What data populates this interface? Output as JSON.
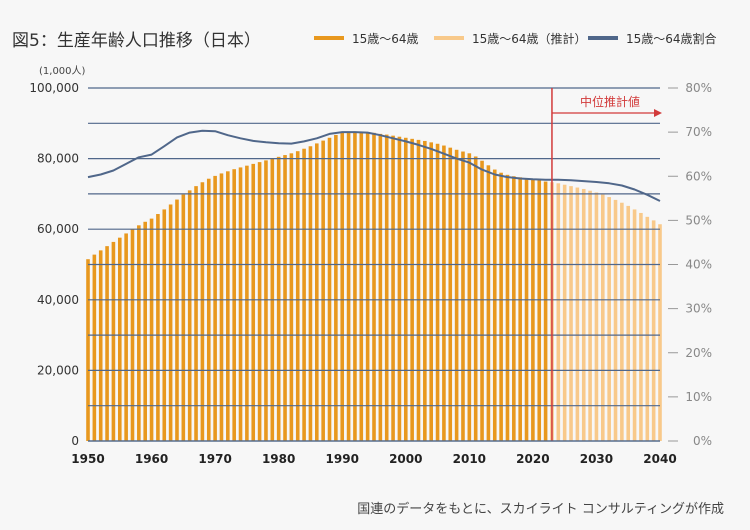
{
  "title": "図5：生産年齢人口推移（日本）",
  "unit_label": "(1,000人)",
  "source": "国連のデータをもとに、スカイライト コンサルティングが作成",
  "legend": [
    {
      "label": "15歳〜64歳",
      "color": "#e8981e"
    },
    {
      "label": "15歳〜64歳（推計）",
      "color": "#f8c98a"
    },
    {
      "label": "15歳〜64歳割合",
      "color": "#50678a"
    }
  ],
  "annotation": "中位推計値",
  "colors": {
    "actual": "#e8981e",
    "projection": "#f8c98a",
    "ratio_line": "#50678a",
    "annotation": "#d23a3a",
    "grid": "#50678a"
  },
  "chart_data": {
    "type": "bar",
    "title": "図5：生産年齢人口推移（日本）",
    "x": {
      "min": 1950,
      "max": 2040,
      "ticks": [
        1950,
        1960,
        1970,
        1980,
        1990,
        2000,
        2010,
        2020,
        2030,
        2040
      ],
      "tick_labels": [
        "1950",
        "1960",
        "1970",
        "1980",
        "1990",
        "2000",
        "2010",
        "2020",
        "2030",
        "2040"
      ]
    },
    "y_left": {
      "label": "(1,000人)",
      "range": [
        0,
        100000
      ],
      "ticks": [
        0,
        20000,
        40000,
        60000,
        80000,
        100000
      ],
      "tick_labels": [
        "0",
        "20,000",
        "40,000",
        "60,000",
        "80,000",
        "100,000"
      ]
    },
    "y_right": {
      "range": [
        0,
        80
      ],
      "ticks": [
        0,
        10,
        20,
        30,
        40,
        50,
        60,
        70,
        80
      ],
      "tick_labels": [
        "0%",
        "10%",
        "20%",
        "30%",
        "40%",
        "50%",
        "60%",
        "70%",
        "80%"
      ]
    },
    "projection_start": 2023,
    "series": [
      {
        "name": "15歳〜64歳",
        "type": "bar",
        "axis": "left",
        "x": [
          1950,
          1951,
          1952,
          1953,
          1954,
          1955,
          1956,
          1957,
          1958,
          1959,
          1960,
          1961,
          1962,
          1963,
          1964,
          1965,
          1966,
          1967,
          1968,
          1969,
          1970,
          1971,
          1972,
          1973,
          1974,
          1975,
          1976,
          1977,
          1978,
          1979,
          1980,
          1981,
          1982,
          1983,
          1984,
          1985,
          1986,
          1987,
          1988,
          1989,
          1990,
          1991,
          1992,
          1993,
          1994,
          1995,
          1996,
          1997,
          1998,
          1999,
          2000,
          2001,
          2002,
          2003,
          2004,
          2005,
          2006,
          2007,
          2008,
          2009,
          2010,
          2011,
          2012,
          2013,
          2014,
          2015,
          2016,
          2017,
          2018,
          2019,
          2020,
          2021,
          2022
        ],
        "values": [
          51500,
          52800,
          54000,
          55200,
          56400,
          57600,
          58800,
          60000,
          61100,
          62100,
          63000,
          64300,
          65600,
          67000,
          68400,
          69800,
          71000,
          72200,
          73300,
          74300,
          75100,
          75800,
          76400,
          77000,
          77500,
          78000,
          78500,
          79000,
          79500,
          80000,
          80500,
          81000,
          81500,
          82100,
          82800,
          83500,
          84300,
          85100,
          85900,
          86700,
          87300,
          87600,
          87700,
          87600,
          87500,
          87300,
          87000,
          86800,
          86500,
          86200,
          85900,
          85600,
          85300,
          85000,
          84600,
          84200,
          83700,
          83100,
          82500,
          82000,
          81500,
          80600,
          79400,
          78100,
          76900,
          76000,
          75400,
          75000,
          74700,
          74400,
          74100,
          73800,
          73500
        ]
      },
      {
        "name": "15歳〜64歳（推計）",
        "type": "bar",
        "axis": "left",
        "x": [
          2023,
          2024,
          2025,
          2026,
          2027,
          2028,
          2029,
          2030,
          2031,
          2032,
          2033,
          2034,
          2035,
          2036,
          2037,
          2038,
          2039,
          2040
        ],
        "values": [
          73300,
          73000,
          72600,
          72200,
          71800,
          71400,
          70900,
          70400,
          69800,
          69100,
          68300,
          67500,
          66600,
          65600,
          64600,
          63500,
          62500,
          61400
        ]
      },
      {
        "name": "15歳〜64歳割合",
        "type": "line",
        "axis": "right",
        "x": [
          1950,
          1952,
          1954,
          1956,
          1958,
          1960,
          1962,
          1964,
          1966,
          1968,
          1970,
          1972,
          1974,
          1976,
          1978,
          1980,
          1982,
          1984,
          1986,
          1988,
          1990,
          1992,
          1994,
          1996,
          1998,
          2000,
          2002,
          2004,
          2006,
          2008,
          2010,
          2012,
          2014,
          2016,
          2018,
          2020,
          2022,
          2024,
          2026,
          2028,
          2030,
          2032,
          2034,
          2036,
          2038,
          2040
        ],
        "values": [
          59.8,
          60.4,
          61.3,
          62.8,
          64.3,
          64.9,
          66.8,
          68.8,
          69.9,
          70.3,
          70.2,
          69.3,
          68.6,
          68.0,
          67.7,
          67.5,
          67.4,
          67.9,
          68.6,
          69.6,
          70.0,
          70.0,
          69.9,
          69.3,
          68.6,
          67.9,
          67.1,
          66.2,
          65.1,
          64.0,
          63.1,
          61.5,
          60.4,
          59.8,
          59.5,
          59.3,
          59.2,
          59.2,
          59.1,
          58.9,
          58.7,
          58.4,
          57.9,
          57.0,
          55.8,
          54.4
        ]
      }
    ]
  }
}
